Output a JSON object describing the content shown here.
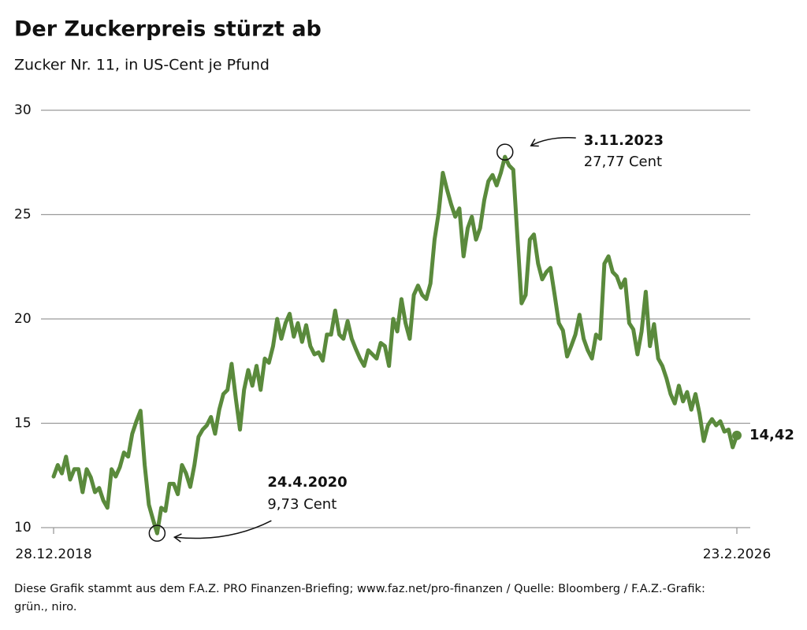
{
  "chart_data": {
    "type": "line",
    "title": "Der Zuckerpreis stürzt ab",
    "subtitle": "Zucker Nr. 11, in US-Cent je Pfund",
    "footer": [
      "Diese Grafik stammt aus dem F.A.Z. PRO Finanzen-Briefing; www.faz.net/pro-finanzen / Quelle: Bloomberg / F.A.Z.-Grafik:",
      "grün., niro."
    ],
    "categories": [
      "28.12.2018",
      null,
      null,
      null,
      null,
      null,
      null,
      null,
      null,
      null,
      null,
      null,
      null,
      null,
      null,
      null,
      null,
      null,
      null,
      null,
      null,
      null,
      null,
      null,
      null,
      null,
      null,
      null,
      null,
      null,
      null,
      null,
      null,
      null,
      null,
      null,
      null,
      null,
      null,
      null,
      null,
      null,
      null,
      null,
      null,
      null,
      null,
      null,
      null,
      null,
      null,
      null,
      null,
      null,
      null,
      null,
      null,
      null,
      null,
      null,
      null,
      null,
      null,
      null,
      null,
      null,
      null,
      null,
      null,
      null,
      null,
      null,
      null,
      null,
      null,
      null,
      null,
      null,
      null,
      null,
      null,
      null,
      null,
      null,
      null,
      null,
      null,
      null,
      null,
      null,
      null,
      null,
      null,
      null,
      null,
      null,
      null,
      null,
      null,
      null,
      null,
      null,
      null,
      null,
      null,
      null,
      null,
      null,
      null,
      null,
      null,
      null,
      null,
      null,
      null,
      null,
      null,
      null,
      null,
      null,
      null,
      null,
      null,
      null,
      null,
      null,
      null,
      null,
      null,
      null,
      null,
      null,
      null,
      null,
      null,
      null,
      null,
      null,
      null,
      null,
      null,
      null,
      null,
      null,
      null,
      null,
      null,
      null,
      null,
      null,
      null,
      null,
      null,
      null,
      null,
      null,
      null,
      null,
      null,
      null,
      null,
      null,
      null,
      null,
      null,
      "23.2.2026"
    ],
    "series": [
      {
        "name": "Zucker Nr. 11",
        "color": "#5a8a3c",
        "values": [
          12.45,
          13.0,
          12.6,
          13.4,
          12.3,
          12.8,
          12.8,
          11.7,
          12.8,
          12.4,
          11.7,
          11.9,
          11.3,
          10.95,
          12.8,
          12.45,
          12.9,
          13.6,
          13.4,
          14.5,
          15.1,
          15.6,
          13.0,
          11.1,
          10.4,
          9.73,
          10.95,
          10.8,
          12.1,
          12.1,
          11.6,
          13.0,
          12.6,
          11.95,
          13.0,
          14.35,
          14.7,
          14.9,
          15.3,
          14.5,
          15.65,
          16.4,
          16.6,
          17.85,
          16.2,
          14.7,
          16.6,
          17.55,
          16.8,
          17.75,
          16.6,
          18.1,
          17.9,
          18.7,
          20.0,
          19.05,
          19.8,
          20.25,
          19.15,
          19.8,
          18.9,
          19.7,
          18.7,
          18.3,
          18.4,
          18.0,
          19.25,
          19.25,
          20.4,
          19.25,
          19.05,
          19.9,
          19.05,
          18.55,
          18.1,
          17.75,
          18.5,
          18.3,
          18.1,
          18.85,
          18.7,
          17.75,
          20.0,
          19.4,
          20.95,
          19.8,
          19.05,
          21.15,
          21.6,
          21.15,
          20.95,
          21.7,
          23.8,
          25.1,
          27.0,
          26.2,
          25.5,
          24.9,
          25.3,
          23.0,
          24.35,
          24.9,
          23.8,
          24.35,
          25.7,
          26.6,
          26.9,
          26.4,
          27.0,
          27.77,
          27.35,
          27.15,
          23.95,
          20.75,
          21.15,
          23.8,
          24.05,
          22.65,
          21.9,
          22.25,
          22.45,
          21.15,
          19.8,
          19.45,
          18.2,
          18.7,
          19.25,
          20.2,
          19.05,
          18.5,
          18.1,
          19.25,
          19.05,
          22.65,
          23.0,
          22.25,
          22.05,
          21.5,
          21.9,
          19.8,
          19.5,
          18.3,
          19.4,
          21.3,
          18.7,
          19.75,
          18.1,
          17.75,
          17.15,
          16.4,
          15.95,
          16.8,
          16.05,
          16.5,
          15.65,
          16.4,
          15.45,
          14.15,
          14.9,
          15.2,
          14.9,
          15.1,
          14.6,
          14.7,
          13.85,
          14.42
        ]
      }
    ],
    "annotations": [
      {
        "date": "24.4.2020",
        "text": "9,73 Cent"
      },
      {
        "date": "3.11.2023",
        "text": "27,77 Cent"
      },
      {
        "text": "14,42"
      }
    ],
    "ylim": [
      10,
      30
    ],
    "yticks": [
      10,
      15,
      20,
      25,
      30
    ],
    "grid": true
  }
}
